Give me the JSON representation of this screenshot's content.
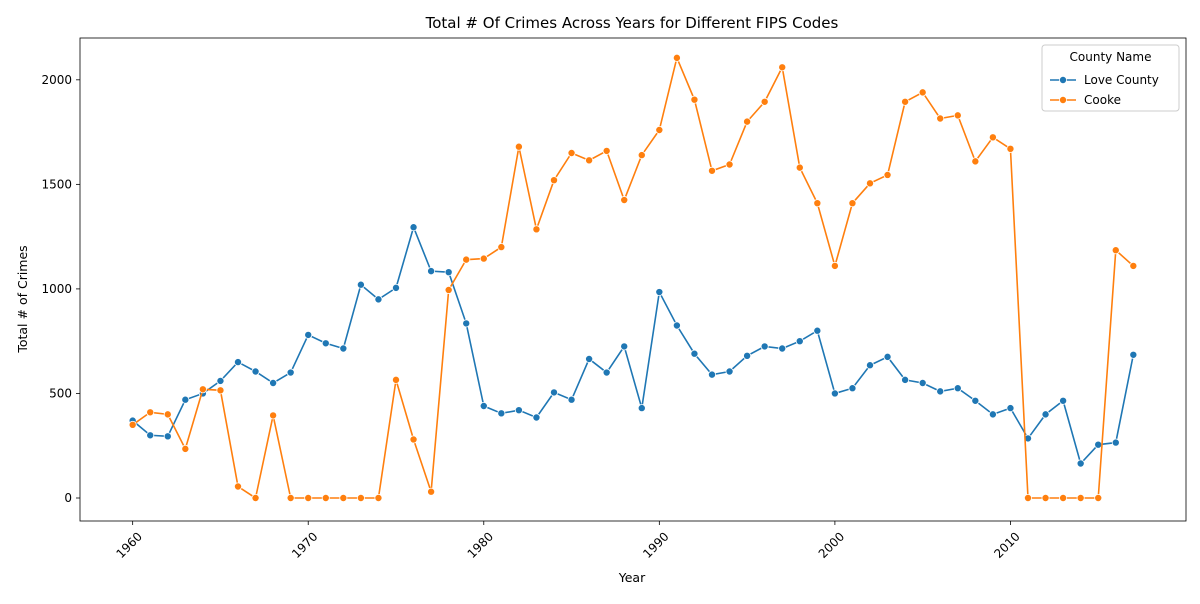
{
  "chart_data": {
    "type": "line",
    "title": "Total # Of Crimes Across Years for Different FIPS Codes",
    "xlabel": "Year",
    "ylabel": "Total # of Crimes",
    "xlim": [
      1957,
      2020
    ],
    "ylim": [
      -110,
      2200
    ],
    "x_ticks": [
      1960,
      1970,
      1980,
      1990,
      2000,
      2010
    ],
    "y_ticks": [
      0,
      500,
      1000,
      1500,
      2000
    ],
    "grid": false,
    "legend": {
      "title": "County Name",
      "placement": "top-right"
    },
    "x": [
      1960,
      1961,
      1962,
      1963,
      1964,
      1965,
      1966,
      1967,
      1968,
      1969,
      1970,
      1971,
      1972,
      1973,
      1974,
      1975,
      1976,
      1977,
      1978,
      1979,
      1980,
      1981,
      1982,
      1983,
      1984,
      1985,
      1986,
      1987,
      1988,
      1989,
      1990,
      1991,
      1992,
      1993,
      1994,
      1995,
      1996,
      1997,
      1998,
      1999,
      2000,
      2001,
      2002,
      2003,
      2004,
      2005,
      2006,
      2007,
      2008,
      2009,
      2010,
      2011,
      2012,
      2013,
      2014,
      2015,
      2016,
      2017
    ],
    "series": [
      {
        "name": "Love County",
        "color": "#1f77b4",
        "values": [
          370,
          300,
          295,
          470,
          500,
          560,
          650,
          605,
          550,
          600,
          780,
          740,
          715,
          1020,
          950,
          1005,
          1295,
          1085,
          1080,
          835,
          440,
          405,
          420,
          385,
          505,
          470,
          665,
          600,
          725,
          430,
          985,
          825,
          690,
          590,
          605,
          680,
          725,
          715,
          750,
          800,
          500,
          525,
          635,
          675,
          565,
          550,
          510,
          525,
          465,
          400,
          430,
          285,
          400,
          465,
          165,
          255,
          265,
          685
        ]
      },
      {
        "name": "Cooke",
        "color": "#ff7f0e",
        "values": [
          350,
          410,
          400,
          235,
          520,
          515,
          55,
          0,
          395,
          0,
          0,
          0,
          0,
          0,
          0,
          565,
          280,
          30,
          995,
          1140,
          1145,
          1200,
          1680,
          1285,
          1520,
          1650,
          1615,
          1660,
          1425,
          1640,
          1760,
          2105,
          1905,
          1565,
          1595,
          1800,
          1895,
          2060,
          1580,
          1410,
          1110,
          1410,
          1505,
          1545,
          1895,
          1940,
          1815,
          1830,
          1610,
          1725,
          1670,
          0,
          0,
          0,
          0,
          0,
          1185,
          1110
        ]
      }
    ]
  }
}
